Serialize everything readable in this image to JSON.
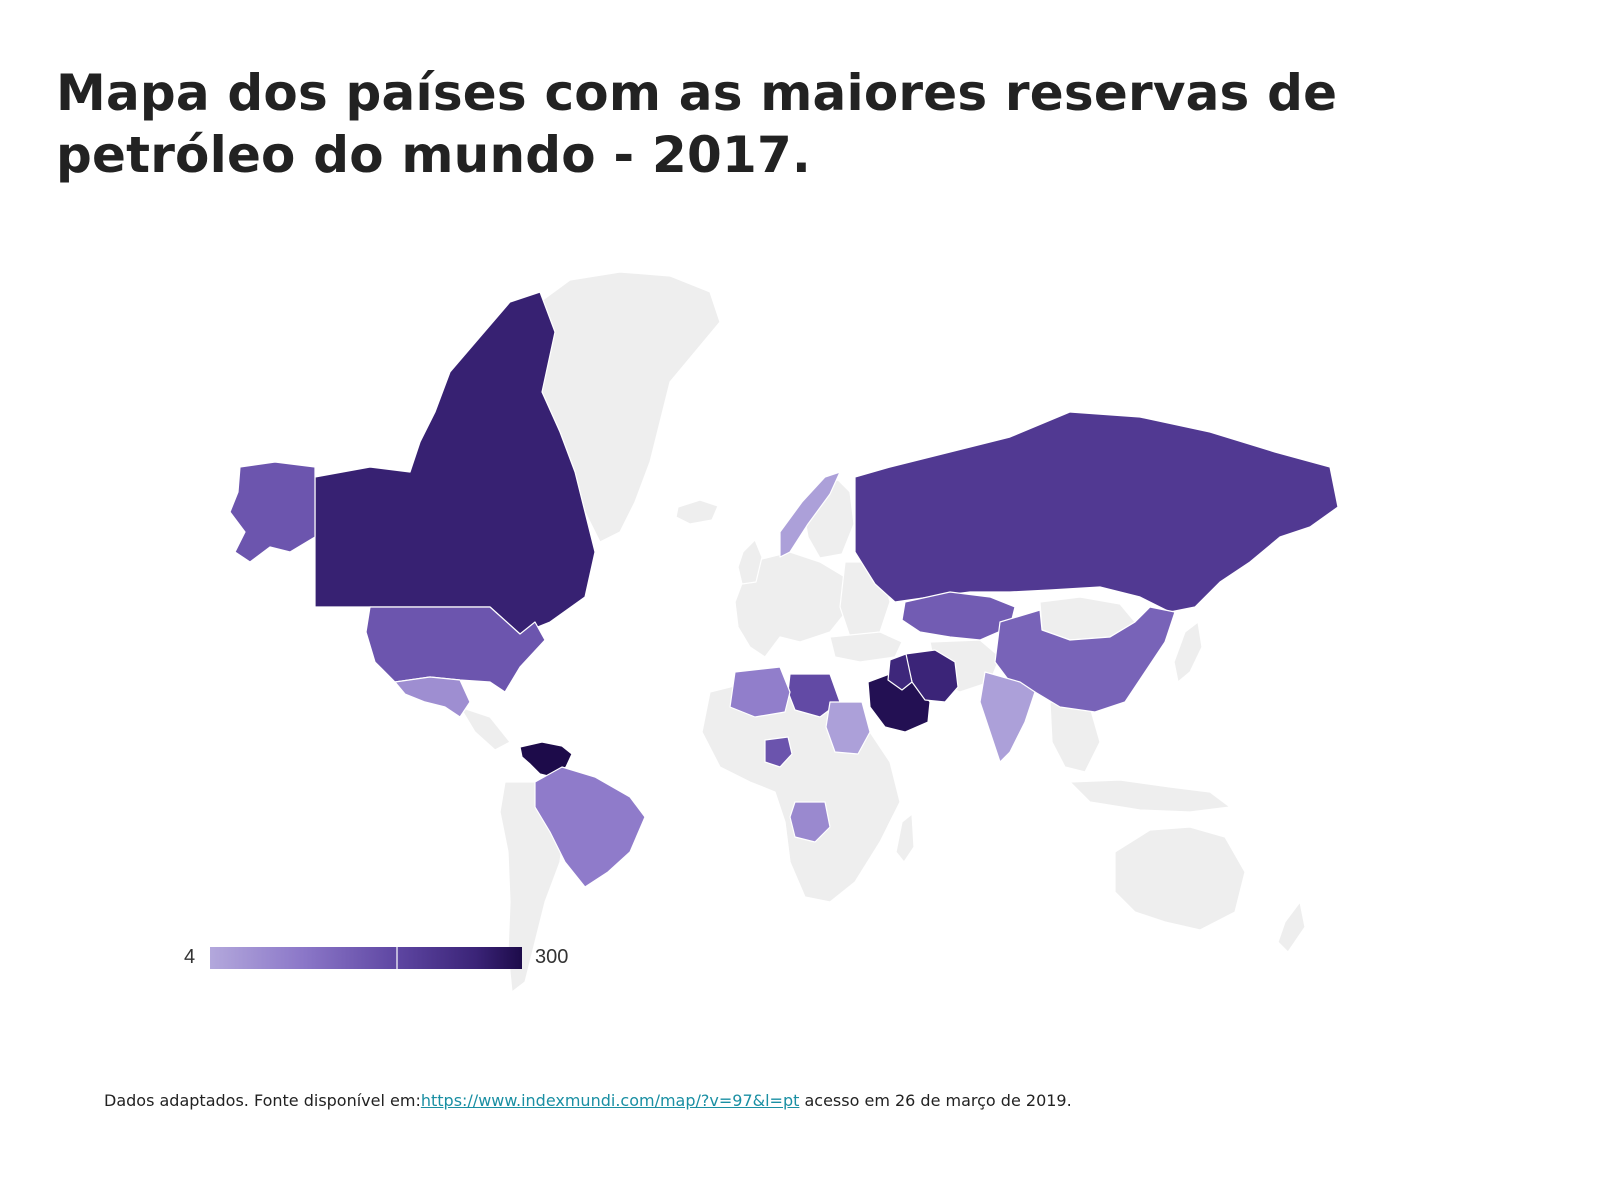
{
  "title": "Mapa dos países com as maiores reservas de petróleo do mundo - 2017.",
  "legend": {
    "min_label": "4",
    "max_label": "300",
    "min_value": 4,
    "max_value": 300,
    "color_min": "#b3a8dc",
    "color_max": "#1d0b4a",
    "no_data_color": "#eeeeee"
  },
  "countries": [
    {
      "name": "Venezuela",
      "value": 300
    },
    {
      "name": "Arábia Saudita",
      "value": 266
    },
    {
      "name": "Canadá",
      "value": 170
    },
    {
      "name": "Irã",
      "value": 158
    },
    {
      "name": "Iraque",
      "value": 144
    },
    {
      "name": "Rússia",
      "value": 80
    },
    {
      "name": "Líbia",
      "value": 48
    },
    {
      "name": "Estados Unidos",
      "value": 36
    },
    {
      "name": "Nigéria",
      "value": 37
    },
    {
      "name": "Cazaquistão",
      "value": 30
    },
    {
      "name": "China",
      "value": 25
    },
    {
      "name": "Brasil",
      "value": 13
    },
    {
      "name": "Argélia",
      "value": 12
    },
    {
      "name": "Angola",
      "value": 9
    },
    {
      "name": "México",
      "value": 8
    },
    {
      "name": "Sudão",
      "value": 5
    },
    {
      "name": "Índia",
      "value": 5
    },
    {
      "name": "Noruega",
      "value": 5
    }
  ],
  "source": {
    "prefix": "Dados adaptados. Fonte disponível em:",
    "link_text": "https://www.indexmundi.com/map/?v=97&l=pt",
    "suffix": " acesso em 26 de março de 2019."
  }
}
